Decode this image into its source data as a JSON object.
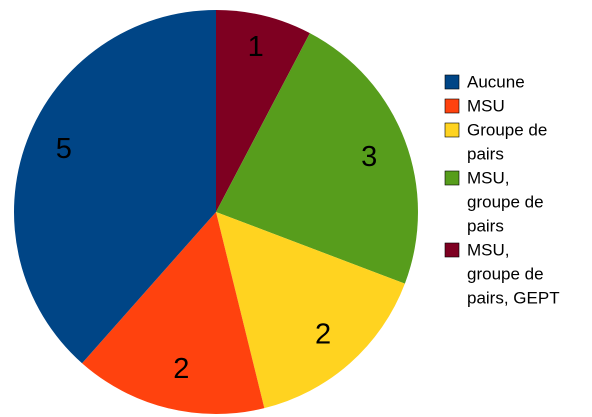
{
  "chart_data": {
    "type": "pie",
    "title": "",
    "start_angle_deg": 0,
    "direction": "clockwise",
    "slices": [
      {
        "label": "MSU, groupe de pairs, GEPT",
        "legend_lines": [
          "MSU,",
          "groupe de",
          "pairs, GEPT"
        ],
        "value": 1,
        "color": "#7e0021"
      },
      {
        "label": "MSU, groupe de pairs",
        "legend_lines": [
          "MSU,",
          "groupe de",
          "pairs"
        ],
        "value": 3,
        "color": "#579d1c"
      },
      {
        "label": "Groupe de pairs",
        "legend_lines": [
          "Groupe de",
          "pairs"
        ],
        "value": 2,
        "color": "#ffd320"
      },
      {
        "label": "MSU",
        "legend_lines": [
          "MSU"
        ],
        "value": 2,
        "color": "#ff420e"
      },
      {
        "label": "Aucune",
        "legend_lines": [
          "Aucune"
        ],
        "value": 5,
        "color": "#004586"
      }
    ],
    "legend": {
      "position": "right",
      "order": [
        "Aucune",
        "MSU",
        "Groupe de pairs",
        "MSU, groupe de pairs",
        "MSU, groupe de pairs, GEPT"
      ]
    }
  }
}
